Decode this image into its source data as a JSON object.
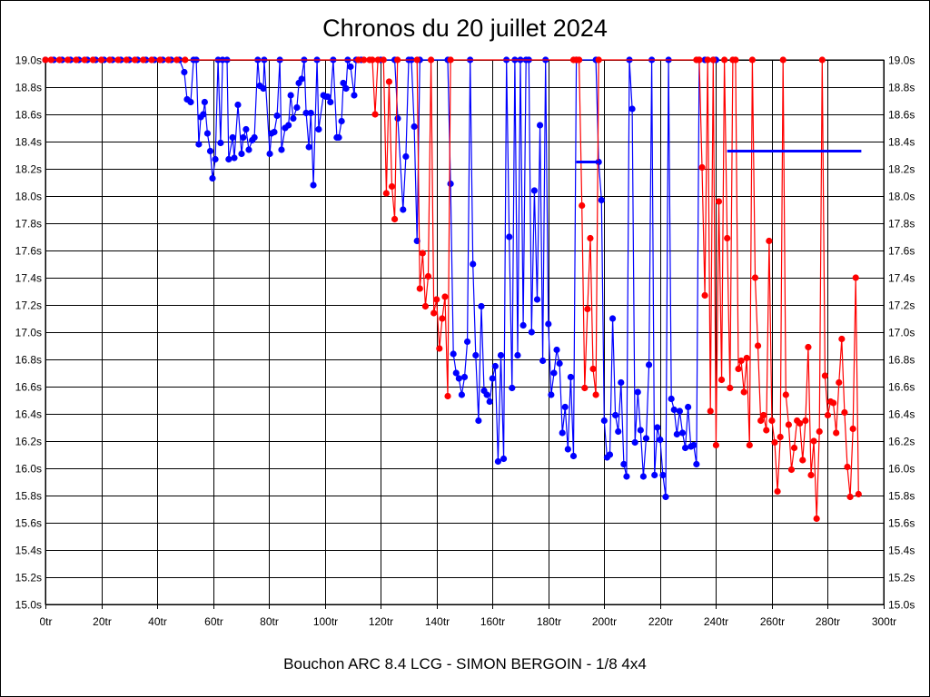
{
  "chart_data": {
    "type": "line",
    "title": "Chronos du 20 juillet 2024",
    "subtitle": "Bouchon ARC 8.4 LCG - SIMON BERGOIN - 1/8 4x4",
    "xlim": [
      0,
      300
    ],
    "ylim": [
      15.0,
      19.0
    ],
    "grid": true,
    "x_tick_labels": [
      "0tr",
      "20tr",
      "40tr",
      "60tr",
      "80tr",
      "100tr",
      "120tr",
      "140tr",
      "160tr",
      "180tr",
      "200tr",
      "220tr",
      "240tr",
      "260tr",
      "280tr",
      "300tr"
    ],
    "x_ticks": [
      0,
      20,
      40,
      60,
      80,
      100,
      120,
      140,
      160,
      180,
      200,
      220,
      240,
      260,
      280,
      300
    ],
    "y_tick_labels": [
      "15.0s",
      "15.2s",
      "15.4s",
      "15.6s",
      "15.8s",
      "16.0s",
      "16.2s",
      "16.4s",
      "16.6s",
      "16.8s",
      "17.0s",
      "17.2s",
      "17.4s",
      "17.6s",
      "17.8s",
      "18.0s",
      "18.2s",
      "18.4s",
      "18.6s",
      "18.8s",
      "19.0s"
    ],
    "y_ticks": [
      15.0,
      15.2,
      15.4,
      15.6,
      15.8,
      16.0,
      16.2,
      16.4,
      16.6,
      16.8,
      17.0,
      17.2,
      17.4,
      17.6,
      17.8,
      18.0,
      18.2,
      18.4,
      18.6,
      18.8,
      19.0
    ],
    "y_axis_both_sides": true,
    "series": [
      {
        "color": "#0000ff",
        "points": [
          [
            0,
            19
          ],
          [
            3,
            19
          ],
          [
            6,
            19
          ],
          [
            9,
            19
          ],
          [
            12,
            19
          ],
          [
            15,
            19
          ],
          [
            18,
            19
          ],
          [
            21,
            19
          ],
          [
            24,
            19
          ],
          [
            27,
            19
          ],
          [
            30,
            19
          ],
          [
            33,
            19
          ],
          [
            36,
            19
          ],
          [
            39,
            19
          ],
          [
            42,
            19
          ],
          [
            45,
            19
          ],
          [
            48,
            19
          ],
          [
            49.7,
            18.91
          ],
          [
            50.7,
            18.71
          ],
          [
            52,
            18.69
          ],
          [
            53,
            19
          ],
          [
            54,
            19
          ],
          [
            54.9,
            18.38
          ],
          [
            55.6,
            18.58
          ],
          [
            56.5,
            18.6
          ],
          [
            57,
            18.69
          ],
          [
            58,
            18.46
          ],
          [
            59,
            18.33
          ],
          [
            59.8,
            18.13
          ],
          [
            60.8,
            18.27
          ],
          [
            61.8,
            19
          ],
          [
            62.7,
            18.39
          ],
          [
            63.4,
            19
          ],
          [
            65,
            19
          ],
          [
            65.6,
            18.27
          ],
          [
            67,
            18.43
          ],
          [
            67.6,
            18.28
          ],
          [
            68.9,
            18.67
          ],
          [
            70.2,
            18.31
          ],
          [
            70.8,
            18.43
          ],
          [
            71.8,
            18.49
          ],
          [
            72.8,
            18.34
          ],
          [
            74,
            18.41
          ],
          [
            74.8,
            18.43
          ],
          [
            76,
            19
          ],
          [
            76.7,
            18.81
          ],
          [
            78,
            18.79
          ],
          [
            78.3,
            19
          ],
          [
            80.3,
            18.31
          ],
          [
            80.9,
            18.46
          ],
          [
            81.9,
            18.47
          ],
          [
            82.9,
            18.59
          ],
          [
            83.9,
            19
          ],
          [
            84.5,
            18.34
          ],
          [
            85.8,
            18.5
          ],
          [
            87,
            18.52
          ],
          [
            87.8,
            18.74
          ],
          [
            88.7,
            18.57
          ],
          [
            90,
            18.65
          ],
          [
            90.7,
            18.83
          ],
          [
            91.7,
            18.86
          ],
          [
            92.6,
            19
          ],
          [
            93.3,
            18.61
          ],
          [
            94.3,
            18.36
          ],
          [
            95,
            18.61
          ],
          [
            95.9,
            18.08
          ],
          [
            97.2,
            19
          ],
          [
            97.8,
            18.49
          ],
          [
            99.5,
            18.74
          ],
          [
            100.4,
            18.73
          ],
          [
            101,
            18.73
          ],
          [
            102,
            18.69
          ],
          [
            103,
            19
          ],
          [
            104.3,
            18.43
          ],
          [
            105,
            18.43
          ],
          [
            106,
            18.55
          ],
          [
            106.6,
            18.83
          ],
          [
            107.6,
            18.79
          ],
          [
            108.2,
            19
          ],
          [
            109.2,
            18.95
          ],
          [
            110.5,
            18.74
          ],
          [
            111.2,
            19
          ],
          [
            113,
            19
          ],
          [
            120,
            19
          ],
          [
            125,
            19
          ],
          [
            126.1,
            18.57
          ],
          [
            128,
            17.9
          ],
          [
            129,
            18.29
          ],
          [
            130,
            19
          ],
          [
            131,
            19
          ],
          [
            132,
            18.51
          ],
          [
            133,
            17.67
          ],
          [
            134,
            19
          ],
          [
            144,
            19
          ],
          [
            145,
            18.09
          ],
          [
            146,
            16.84
          ],
          [
            147,
            16.7
          ],
          [
            148,
            16.66
          ],
          [
            149,
            16.54
          ],
          [
            150,
            16.67
          ],
          [
            151,
            16.93
          ],
          [
            152,
            19
          ],
          [
            153,
            17.5
          ],
          [
            154,
            16.83
          ],
          [
            155,
            16.35
          ],
          [
            156,
            17.19
          ],
          [
            157,
            16.57
          ],
          [
            158,
            16.54
          ],
          [
            159,
            16.49
          ],
          [
            160,
            16.66
          ],
          [
            161,
            16.75
          ],
          [
            162,
            16.05
          ],
          [
            163,
            16.83
          ],
          [
            164,
            16.07
          ],
          [
            165,
            19
          ],
          [
            166,
            17.7
          ],
          [
            167,
            16.59
          ],
          [
            168,
            19
          ],
          [
            169,
            16.83
          ],
          [
            170,
            19
          ],
          [
            171,
            17.05
          ],
          [
            172,
            19
          ],
          [
            173,
            19
          ],
          [
            174,
            17.0
          ],
          [
            175,
            18.04
          ],
          [
            176,
            17.24
          ],
          [
            177,
            18.52
          ],
          [
            178,
            16.79
          ],
          [
            179,
            19
          ],
          [
            180,
            17.06
          ],
          [
            181,
            16.54
          ],
          [
            182,
            16.7
          ],
          [
            183,
            16.87
          ],
          [
            184,
            16.77
          ],
          [
            185,
            16.26
          ],
          [
            186,
            16.45
          ],
          [
            187,
            16.14
          ],
          [
            188,
            16.67
          ],
          [
            189,
            16.09
          ],
          [
            190,
            19
          ],
          [
            197,
            19
          ],
          [
            198,
            18.25
          ],
          [
            199,
            17.97
          ],
          [
            200,
            16.35
          ],
          [
            201,
            16.08
          ],
          [
            202,
            16.1
          ],
          [
            203,
            17.1
          ],
          [
            204,
            16.39
          ],
          [
            205,
            16.27
          ],
          [
            206,
            16.63
          ],
          [
            207,
            16.03
          ],
          [
            208,
            15.94
          ],
          [
            209,
            19
          ],
          [
            210,
            18.64
          ],
          [
            211,
            16.19
          ],
          [
            212,
            16.56
          ],
          [
            213,
            16.28
          ],
          [
            214,
            15.94
          ],
          [
            215,
            16.22
          ],
          [
            216,
            16.76
          ],
          [
            217,
            19
          ],
          [
            218,
            15.95
          ],
          [
            219,
            16.3
          ],
          [
            220,
            16.21
          ],
          [
            221,
            15.95
          ],
          [
            222,
            15.79
          ],
          [
            223,
            19
          ],
          [
            224,
            16.51
          ],
          [
            225,
            16.43
          ],
          [
            226,
            16.25
          ],
          [
            227,
            16.42
          ],
          [
            228,
            16.26
          ],
          [
            229,
            16.15
          ],
          [
            230,
            16.45
          ],
          [
            231,
            16.16
          ],
          [
            232,
            16.17
          ],
          [
            233,
            16.03
          ],
          [
            234,
            19
          ],
          [
            236,
            19
          ],
          [
            239,
            19
          ],
          [
            240,
            19
          ]
        ]
      },
      {
        "color": "#ff0000",
        "points": [
          [
            0,
            19
          ],
          [
            2,
            19
          ],
          [
            5,
            19
          ],
          [
            8,
            19
          ],
          [
            11,
            19
          ],
          [
            14,
            19
          ],
          [
            17,
            19
          ],
          [
            20,
            19
          ],
          [
            23,
            19
          ],
          [
            26,
            19
          ],
          [
            29,
            19
          ],
          [
            32,
            19
          ],
          [
            35,
            19
          ],
          [
            38,
            19
          ],
          [
            41,
            19
          ],
          [
            44,
            19
          ],
          [
            47,
            19
          ],
          [
            50,
            19
          ],
          [
            112,
            19
          ],
          [
            114,
            19
          ],
          [
            116,
            19
          ],
          [
            117,
            19
          ],
          [
            118,
            18.6
          ],
          [
            119,
            19
          ],
          [
            121,
            19
          ],
          [
            122,
            18.02
          ],
          [
            123,
            18.84
          ],
          [
            124,
            18.07
          ],
          [
            125,
            17.83
          ],
          [
            126,
            19
          ],
          [
            133,
            19
          ],
          [
            134,
            17.32
          ],
          [
            135,
            17.58
          ],
          [
            136,
            17.19
          ],
          [
            137,
            17.41
          ],
          [
            138,
            19
          ],
          [
            139,
            17.14
          ],
          [
            140,
            17.24
          ],
          [
            141,
            16.88
          ],
          [
            142,
            17.1
          ],
          [
            143,
            17.26
          ],
          [
            144,
            16.53
          ],
          [
            145,
            19
          ],
          [
            189,
            19
          ],
          [
            190,
            19
          ],
          [
            191,
            19
          ],
          [
            192,
            17.93
          ],
          [
            193,
            16.59
          ],
          [
            194,
            17.17
          ],
          [
            195,
            17.69
          ],
          [
            196,
            16.73
          ],
          [
            197,
            16.54
          ],
          [
            198,
            19
          ],
          [
            233,
            19
          ],
          [
            234,
            19
          ],
          [
            235,
            18.21
          ],
          [
            236,
            17.27
          ],
          [
            237,
            19
          ],
          [
            238,
            16.42
          ],
          [
            239,
            19
          ],
          [
            240,
            16.17
          ],
          [
            241,
            17.96
          ],
          [
            242,
            16.65
          ],
          [
            243,
            19
          ],
          [
            244,
            17.69
          ],
          [
            245,
            16.59
          ],
          [
            246,
            19
          ],
          [
            247,
            19
          ],
          [
            248,
            16.73
          ],
          [
            249,
            16.79
          ],
          [
            250,
            16.56
          ],
          [
            251,
            16.81
          ],
          [
            252,
            16.17
          ],
          [
            253,
            19
          ],
          [
            254,
            17.4
          ],
          [
            255,
            16.9
          ],
          [
            256,
            16.35
          ],
          [
            257,
            16.39
          ],
          [
            258,
            16.28
          ],
          [
            259,
            17.67
          ],
          [
            260,
            16.35
          ],
          [
            261,
            16.19
          ],
          [
            262,
            15.83
          ],
          [
            263,
            16.23
          ],
          [
            264,
            19
          ],
          [
            265,
            16.54
          ],
          [
            266,
            16.32
          ],
          [
            267,
            15.99
          ],
          [
            268,
            16.15
          ],
          [
            269,
            16.35
          ],
          [
            270,
            16.33
          ],
          [
            271,
            16.06
          ],
          [
            272,
            16.35
          ],
          [
            273,
            16.89
          ],
          [
            274,
            15.95
          ],
          [
            275,
            16.2
          ],
          [
            276,
            15.63
          ],
          [
            277,
            16.27
          ],
          [
            278,
            19
          ],
          [
            279,
            16.68
          ],
          [
            280,
            16.39
          ],
          [
            281,
            16.49
          ],
          [
            282,
            16.48
          ],
          [
            283,
            16.26
          ],
          [
            284,
            16.63
          ],
          [
            285,
            16.95
          ],
          [
            286,
            16.41
          ],
          [
            287,
            16.01
          ],
          [
            288,
            15.79
          ],
          [
            289,
            16.29
          ],
          [
            290,
            17.4
          ],
          [
            291,
            15.81
          ]
        ]
      }
    ],
    "reference_lines": [
      {
        "color": "#0000ff",
        "y": 18.25,
        "x_from": 190,
        "x_to": 198
      },
      {
        "color": "#0000ff",
        "y": 18.33,
        "x_from": 244,
        "x_to": 292
      }
    ]
  }
}
